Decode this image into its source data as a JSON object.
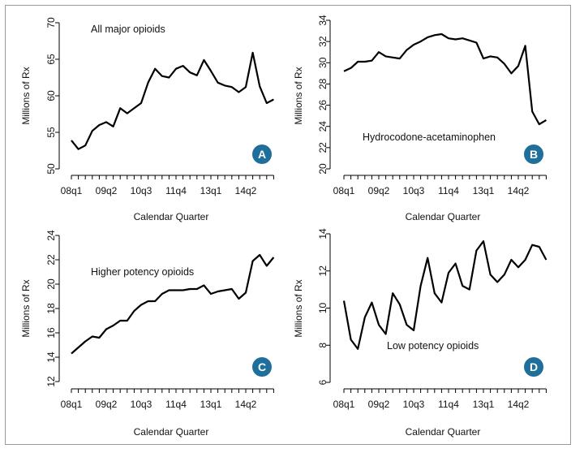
{
  "chart_data": [
    {
      "id": "A",
      "type": "line",
      "title": "All major opioids",
      "badge": "A",
      "xlabel": "Calendar Quarter",
      "ylabel": "Millions of Rx",
      "ylim": [
        50,
        70
      ],
      "yticks": [
        50,
        55,
        60,
        65,
        70
      ],
      "xtick_labels": [
        "08q1",
        "09q2",
        "10q3",
        "11q4",
        "13q1",
        "14q2"
      ],
      "values": [
        53.9,
        52.7,
        53.2,
        55.2,
        56.0,
        56.4,
        55.8,
        58.3,
        57.6,
        58.3,
        59.0,
        61.8,
        63.7,
        62.7,
        62.5,
        63.7,
        64.1,
        63.2,
        62.8,
        64.9,
        63.4,
        61.8,
        61.4,
        61.2,
        60.5,
        61.2,
        65.9,
        61.3,
        59.0,
        59.5
      ]
    },
    {
      "id": "B",
      "type": "line",
      "title": "Hydrocodone-acetaminophen",
      "badge": "B",
      "xlabel": "Calendar Quarter",
      "ylabel": "Millions of Rx",
      "ylim": [
        20,
        34
      ],
      "yticks": [
        20,
        22,
        24,
        26,
        28,
        30,
        32,
        34
      ],
      "xtick_labels": [
        "08q1",
        "09q2",
        "10q3",
        "11q4",
        "13q1",
        "14q2"
      ],
      "values": [
        29.2,
        29.5,
        30.1,
        30.1,
        30.2,
        31.0,
        30.6,
        30.5,
        30.4,
        31.2,
        31.7,
        32.0,
        32.4,
        32.6,
        32.7,
        32.3,
        32.2,
        32.3,
        32.1,
        31.9,
        30.4,
        30.6,
        30.5,
        29.9,
        29.0,
        29.7,
        31.6,
        25.4,
        24.2,
        24.6
      ]
    },
    {
      "id": "C",
      "type": "line",
      "title": "Higher potency opioids",
      "badge": "C",
      "xlabel": "Calendar Quarter",
      "ylabel": "Millions of Rx",
      "ylim": [
        12,
        24
      ],
      "yticks": [
        12,
        14,
        16,
        18,
        20,
        22,
        24
      ],
      "xtick_labels": [
        "08q1",
        "09q2",
        "10q3",
        "11q4",
        "13q1",
        "14q2"
      ],
      "values": [
        14.3,
        14.8,
        15.3,
        15.7,
        15.6,
        16.3,
        16.6,
        17.0,
        17.0,
        17.8,
        18.3,
        18.6,
        18.6,
        19.2,
        19.5,
        19.5,
        19.5,
        19.6,
        19.6,
        19.9,
        19.2,
        19.4,
        19.5,
        19.6,
        18.8,
        19.3,
        21.9,
        22.4,
        21.5,
        22.2
      ]
    },
    {
      "id": "D",
      "type": "line",
      "title": "Low potency opioids",
      "badge": "D",
      "xlabel": "Calendar Quarter",
      "ylabel": "Millions of Rx",
      "ylim": [
        6,
        14
      ],
      "yticks": [
        6,
        8,
        10,
        12,
        14
      ],
      "xtick_labels": [
        "08q1",
        "09q2",
        "10q3",
        "11q4",
        "13q1",
        "14q2"
      ],
      "values": [
        10.4,
        8.3,
        7.8,
        9.5,
        10.3,
        9.1,
        8.6,
        10.8,
        10.2,
        9.1,
        8.8,
        11.2,
        12.7,
        10.8,
        10.3,
        11.9,
        12.4,
        11.2,
        11.0,
        13.1,
        13.6,
        11.8,
        11.4,
        11.8,
        12.6,
        12.2,
        12.6,
        13.4,
        13.3,
        12.6
      ]
    }
  ]
}
